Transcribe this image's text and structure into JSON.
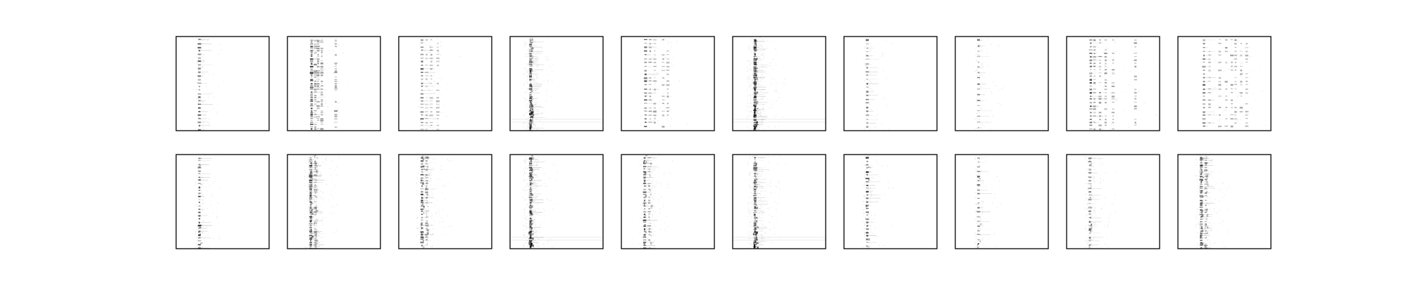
{
  "figure": {
    "background": "#ffffff",
    "frame_color": "#000000",
    "ink_color": "#000000"
  },
  "chart_data": {
    "type": "heatmap",
    "layout": {
      "rows": 2,
      "cols": 10
    },
    "axes_visible": false,
    "ticks": "none",
    "grid": false,
    "legend": "none",
    "colormap": "gray_r",
    "value_range": [
      0,
      1
    ],
    "panels": [
      {
        "row": 0,
        "col": 0,
        "pattern": "dots",
        "columns": [
          0.25
        ],
        "streak": 0.0,
        "intensity": 0.75,
        "spacing": 0.038,
        "seed": 11
      },
      {
        "row": 0,
        "col": 1,
        "pattern": "dots",
        "columns": [
          0.26,
          0.3,
          0.33,
          0.37,
          0.52
        ],
        "streak": 0.0,
        "intensity": 0.8,
        "spacing": 0.022,
        "seed": 12
      },
      {
        "row": 0,
        "col": 2,
        "pattern": "dots",
        "columns": [
          0.25,
          0.3,
          0.35,
          0.42
        ],
        "streak": 0.0,
        "intensity": 0.6,
        "spacing": 0.038,
        "seed": 13
      },
      {
        "row": 0,
        "col": 3,
        "pattern": "streak",
        "columns": [
          0.22
        ],
        "streak": 0.8,
        "intensity": 0.7,
        "spacing": 0.02,
        "seed": 14
      },
      {
        "row": 0,
        "col": 4,
        "pattern": "dots",
        "columns": [
          0.26,
          0.31,
          0.36,
          0.45,
          0.5
        ],
        "streak": 0.0,
        "intensity": 0.75,
        "spacing": 0.04,
        "seed": 15
      },
      {
        "row": 0,
        "col": 5,
        "pattern": "streak",
        "columns": [
          0.24
        ],
        "streak": 1.0,
        "intensity": 0.8,
        "spacing": 0.018,
        "seed": 16
      },
      {
        "row": 0,
        "col": 6,
        "pattern": "dots",
        "columns": [
          0.25
        ],
        "streak": 0.0,
        "intensity": 0.65,
        "spacing": 0.042,
        "seed": 17
      },
      {
        "row": 0,
        "col": 7,
        "pattern": "dots",
        "columns": [
          0.25
        ],
        "streak": 0.0,
        "intensity": 0.6,
        "spacing": 0.058,
        "seed": 18
      },
      {
        "row": 0,
        "col": 8,
        "pattern": "dots",
        "columns": [
          0.26,
          0.3,
          0.36,
          0.42,
          0.5,
          0.74
        ],
        "streak": 0.0,
        "intensity": 0.75,
        "spacing": 0.035,
        "seed": 19
      },
      {
        "row": 0,
        "col": 9,
        "pattern": "dots",
        "columns": [
          0.28,
          0.34,
          0.45,
          0.52,
          0.58,
          0.62,
          0.68,
          0.74
        ],
        "streak": 0.0,
        "intensity": 0.7,
        "spacing": 0.04,
        "seed": 20
      },
      {
        "row": 1,
        "col": 0,
        "pattern": "dots",
        "columns": [
          0.25
        ],
        "streak": 0.2,
        "intensity": 0.8,
        "spacing": 0.034,
        "seed": 21
      },
      {
        "row": 1,
        "col": 1,
        "pattern": "streak",
        "columns": [
          0.25,
          0.3
        ],
        "streak": 0.7,
        "intensity": 0.75,
        "spacing": 0.02,
        "seed": 22
      },
      {
        "row": 1,
        "col": 2,
        "pattern": "streak",
        "columns": [
          0.25,
          0.3
        ],
        "streak": 0.5,
        "intensity": 0.75,
        "spacing": 0.03,
        "seed": 23
      },
      {
        "row": 1,
        "col": 3,
        "pattern": "streak",
        "columns": [
          0.22
        ],
        "streak": 0.9,
        "intensity": 0.8,
        "spacing": 0.02,
        "seed": 24
      },
      {
        "row": 1,
        "col": 4,
        "pattern": "dots",
        "columns": [
          0.25,
          0.3
        ],
        "streak": 0.3,
        "intensity": 0.8,
        "spacing": 0.03,
        "seed": 25
      },
      {
        "row": 1,
        "col": 5,
        "pattern": "streak",
        "columns": [
          0.24
        ],
        "streak": 0.9,
        "intensity": 0.75,
        "spacing": 0.02,
        "seed": 26
      },
      {
        "row": 1,
        "col": 6,
        "pattern": "dots",
        "columns": [
          0.25
        ],
        "streak": 0.2,
        "intensity": 0.8,
        "spacing": 0.036,
        "seed": 27
      },
      {
        "row": 1,
        "col": 7,
        "pattern": "dots",
        "columns": [
          0.25
        ],
        "streak": 0.1,
        "intensity": 0.65,
        "spacing": 0.048,
        "seed": 28
      },
      {
        "row": 1,
        "col": 8,
        "pattern": "dots",
        "columns": [
          0.25
        ],
        "streak": 0.4,
        "intensity": 0.55,
        "spacing": 0.04,
        "seed": 29
      },
      {
        "row": 1,
        "col": 9,
        "pattern": "streak",
        "columns": [
          0.25,
          0.3
        ],
        "streak": 0.6,
        "intensity": 0.75,
        "spacing": 0.025,
        "seed": 30
      }
    ]
  }
}
